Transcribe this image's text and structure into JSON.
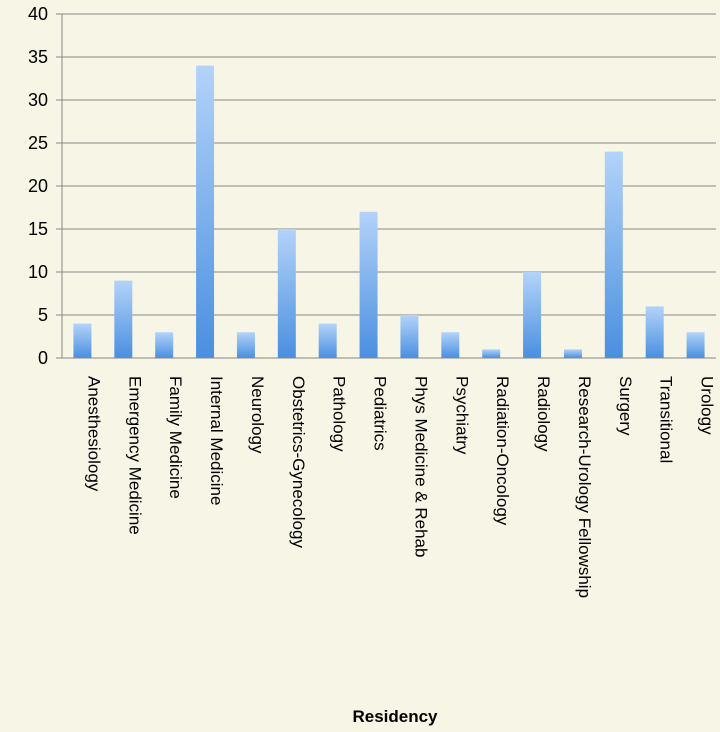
{
  "chart_data": {
    "type": "bar",
    "title": "",
    "xlabel": "Residency",
    "ylabel": "",
    "ylim": [
      0,
      40
    ],
    "yticks": [
      0,
      5,
      10,
      15,
      20,
      25,
      30,
      35,
      40
    ],
    "grid": true,
    "legend": "none",
    "categories": [
      "Anesthesiology",
      "Emergency Medicine",
      "Family Medicine",
      "Internal Medicine",
      "Neurology",
      "Obstetrics-Gynecology",
      "Pathology",
      "Pediatrics",
      "Phys Medicine & Rehab",
      "Psychiatry",
      "Radiation-Oncology",
      "Radiology",
      "Research-Urology Fellowship",
      "Surgery",
      "Transitional",
      "Urology"
    ],
    "values": [
      4,
      9,
      3,
      34,
      3,
      15,
      4,
      17,
      5,
      3,
      1,
      10,
      1,
      24,
      6,
      3
    ],
    "colors": {
      "bar_top": "#b3d3f9",
      "bar_bottom": "#4a8fe0",
      "grid": "#888888",
      "background": "#f7f5e6"
    }
  }
}
